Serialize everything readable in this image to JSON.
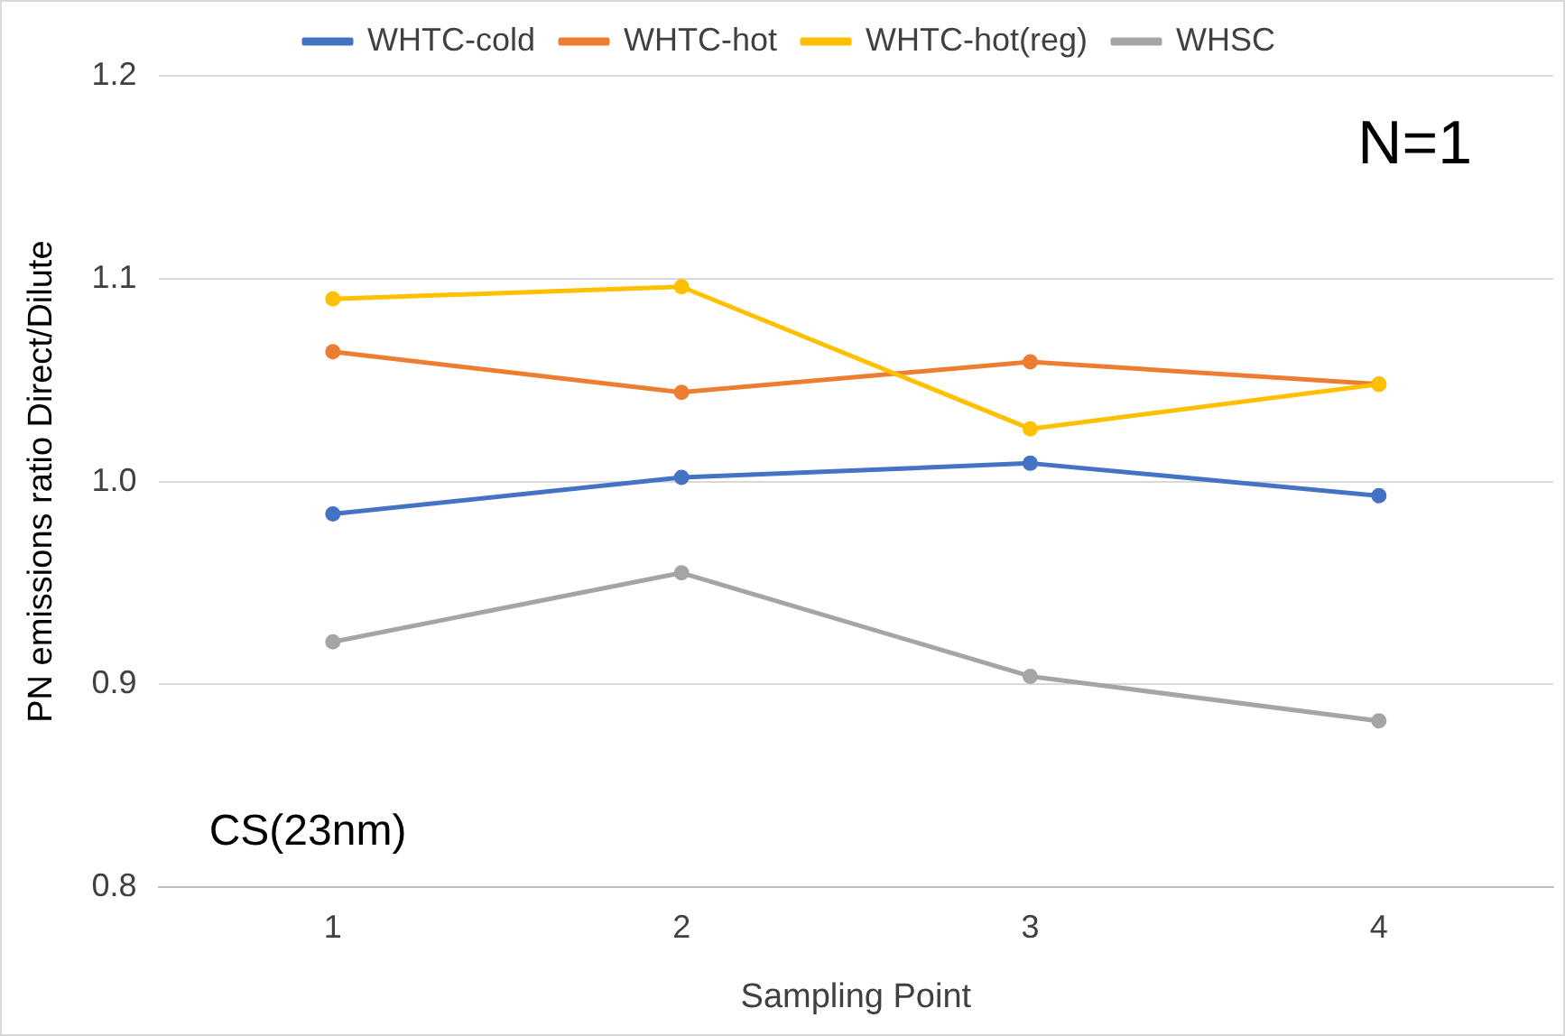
{
  "chart_data": {
    "type": "line",
    "xlabel": "Sampling Point",
    "ylabel": "PN emissions ratio Direct/Dilute",
    "categories": [
      "1",
      "2",
      "3",
      "4"
    ],
    "series": [
      {
        "name": "WHTC-cold",
        "color": "#4472c4",
        "values": [
          0.984,
          1.002,
          1.009,
          0.993
        ]
      },
      {
        "name": "WHTC-hot",
        "color": "#ed7d31",
        "values": [
          1.064,
          1.044,
          1.059,
          1.048
        ]
      },
      {
        "name": "WHTC-hot(reg)",
        "color": "#ffc000",
        "values": [
          1.09,
          1.096,
          1.026,
          1.048
        ]
      },
      {
        "name": "WHSC",
        "color": "#a5a5a5",
        "values": [
          0.921,
          0.955,
          0.904,
          0.882
        ]
      }
    ],
    "ylim": [
      0.8,
      1.2
    ],
    "yticks": [
      {
        "value": 0.8,
        "label": "0.8"
      },
      {
        "value": 0.9,
        "label": "0.9"
      },
      {
        "value": 1.0,
        "label": "1.0"
      },
      {
        "value": 1.1,
        "label": "1.1"
      },
      {
        "value": 1.2,
        "label": "1.2"
      }
    ],
    "grid": "y",
    "legend": "top",
    "marker": "circle",
    "line_style": "solid",
    "annotations": [
      "N=1",
      "CS(23nm)"
    ]
  }
}
